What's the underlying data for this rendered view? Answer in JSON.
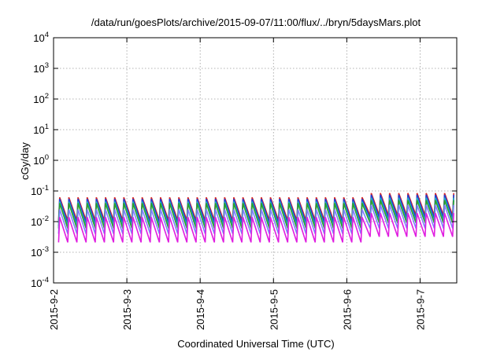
{
  "chart_data": {
    "type": "line",
    "title": "/data/run/goesPlots/archive/2015-09-07/11:00/flux/../bryn/5daysMars.plot",
    "xlabel": "Coordinated Universal Time (UTC)",
    "ylabel": "cGy/day",
    "yscale": "log",
    "ylim": [
      0.0001,
      10000
    ],
    "xlim": [
      "2015-09-02 00:00",
      "2015-09-07 12:00"
    ],
    "grid": true,
    "legend": "none",
    "x_ticks": [
      "2015-9-2",
      "2015-9-3",
      "2015-9-4",
      "2015-9-5",
      "2015-9-6",
      "2015-9-7"
    ],
    "y_ticks": [
      {
        "base": "10",
        "exp": "4"
      },
      {
        "base": "10",
        "exp": "3"
      },
      {
        "base": "10",
        "exp": "2"
      },
      {
        "base": "10",
        "exp": "1"
      },
      {
        "base": "10",
        "exp": "0"
      },
      {
        "base": "10",
        "exp": "-1"
      },
      {
        "base": "10",
        "exp": "-2"
      },
      {
        "base": "10",
        "exp": "-3"
      },
      {
        "base": "10",
        "exp": "-4"
      }
    ],
    "sawtooth_period_hours": 3,
    "series": [
      {
        "color": "#d62728",
        "baseline_peak": 0.062,
        "baseline_trough": 0.011,
        "late_peak": 0.085,
        "late_trough": 0.016
      },
      {
        "color": "#1f3fd6",
        "baseline_peak": 0.055,
        "baseline_trough": 0.009,
        "late_peak": 0.075,
        "late_trough": 0.013
      },
      {
        "color": "#1fb0c8",
        "baseline_peak": 0.045,
        "baseline_trough": 0.007,
        "late_peak": 0.06,
        "late_trough": 0.01
      },
      {
        "color": "#2ca02c",
        "baseline_peak": 0.04,
        "baseline_trough": 0.006,
        "late_peak": 0.05,
        "late_trough": 0.009
      },
      {
        "color": "#7f7fff",
        "baseline_peak": 0.025,
        "baseline_trough": 0.004,
        "late_peak": 0.035,
        "late_trough": 0.006
      },
      {
        "color": "#e01ee0",
        "baseline_peak": 0.014,
        "baseline_trough": 0.0021,
        "late_peak": 0.019,
        "late_trough": 0.0032
      }
    ]
  }
}
